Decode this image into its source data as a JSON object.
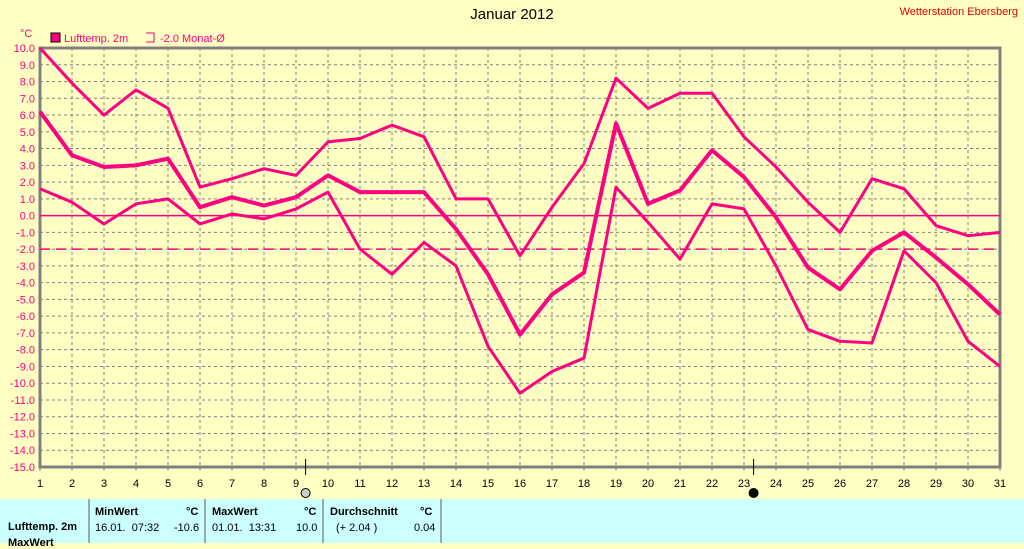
{
  "title": "Januar 2012",
  "station": "Wetterstation Ebersberg",
  "colors": {
    "series": "#ff0080",
    "grid": "#808080",
    "bg": "#ffffc4",
    "stats_bg": "#ccffff"
  },
  "chart_data": {
    "type": "line",
    "title": "Januar 2012",
    "ylabel": "°C",
    "ylim": [
      -15,
      10
    ],
    "yticks": [
      "10.0",
      "9.0",
      "8.0",
      "7.0",
      "6.0",
      "5.0",
      "4.0",
      "3.0",
      "2.0",
      "1.0",
      "0.0",
      "-1.0",
      "-2.0",
      "-3.0",
      "-4.0",
      "-5.0",
      "-6.0",
      "-7.0",
      "-8.0",
      "-9.0",
      "-10.0",
      "-11.0",
      "-12.0",
      "-13.0",
      "-14.0",
      "-15.0"
    ],
    "x": [
      1,
      2,
      3,
      4,
      5,
      6,
      7,
      8,
      9,
      10,
      11,
      12,
      13,
      14,
      15,
      16,
      17,
      18,
      19,
      20,
      21,
      22,
      23,
      24,
      25,
      26,
      27,
      28,
      29,
      30,
      31
    ],
    "legend": [
      "Lufttemp. 2m",
      "-2.0 Monat-Ø"
    ],
    "reference_line": -2.0,
    "moon_phases": [
      {
        "day": 9.3,
        "phase": "full-moon"
      },
      {
        "day": 23.3,
        "phase": "new-moon"
      }
    ],
    "series": [
      {
        "name": "Max",
        "values": [
          10.0,
          7.9,
          6.0,
          7.5,
          6.4,
          1.7,
          2.2,
          2.8,
          2.4,
          4.4,
          4.6,
          5.4,
          4.7,
          1.0,
          1.0,
          -2.4,
          0.5,
          3.1,
          8.2,
          6.4,
          7.3,
          7.3,
          4.7,
          2.9,
          0.8,
          -1.0,
          2.2,
          1.6,
          -0.6,
          -1.2,
          -1.0
        ]
      },
      {
        "name": "Lufttemp. 2m",
        "values": [
          6.2,
          3.6,
          2.9,
          3.0,
          3.4,
          0.5,
          1.1,
          0.6,
          1.1,
          2.4,
          1.4,
          1.4,
          1.4,
          -0.8,
          -3.5,
          -7.1,
          -4.7,
          -3.4,
          5.5,
          0.7,
          1.5,
          3.9,
          2.3,
          -0.1,
          -3.1,
          -4.4,
          -2.1,
          -1.0,
          -2.5,
          -4.1,
          -5.9
        ]
      },
      {
        "name": "Min",
        "values": [
          1.6,
          0.8,
          -0.5,
          0.7,
          1.0,
          -0.5,
          0.1,
          -0.2,
          0.4,
          1.4,
          -2.0,
          -3.5,
          -1.6,
          -3.0,
          -7.8,
          -10.6,
          -9.3,
          -8.5,
          1.7,
          -0.4,
          -2.6,
          0.7,
          0.4,
          -3.0,
          -6.8,
          -7.5,
          -7.6,
          -2.1,
          -4.0,
          -7.5,
          -9.0
        ]
      }
    ]
  },
  "stats": {
    "row_label": "Lufttemp. 2m",
    "row2_label": "MaxWert",
    "min_header": "MinWert",
    "min_unit": "°C",
    "min_time": "16.01.  07:32",
    "min_value": "-10.6",
    "max_header": "MaxWert",
    "max_unit": "°C",
    "max_time": "01.01.  13:31",
    "max_value": "10.0",
    "avg_header": "Durchschnitt",
    "avg_unit": "°C",
    "avg_delta": "(+ 2.04 )",
    "avg_value": "0.04"
  }
}
